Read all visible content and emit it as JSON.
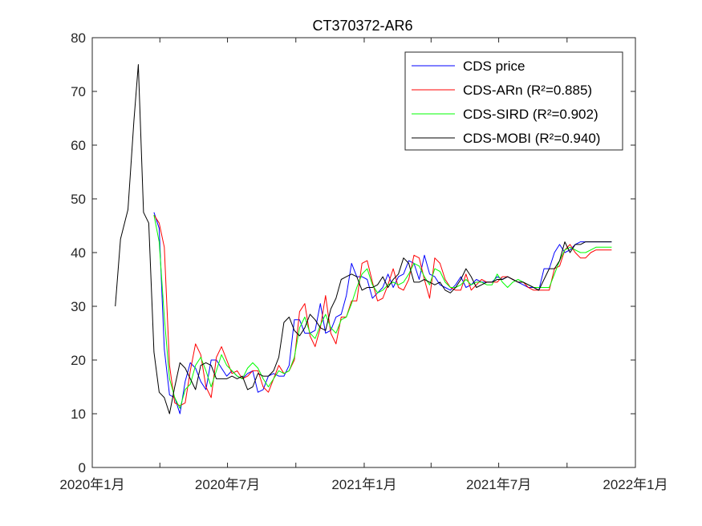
{
  "chart_data": {
    "type": "line",
    "title": "CT370372-AR6",
    "xlabel": "",
    "ylabel": "",
    "ylim": [
      0,
      80
    ],
    "xlim": [
      "2020-01-01",
      "2022-01-01"
    ],
    "yticks": [
      "0",
      "10",
      "20",
      "30",
      "40",
      "50",
      "60",
      "70",
      "80"
    ],
    "xticks": [
      {
        "date": "2020-01-01",
        "label": "2020年1月"
      },
      {
        "date": "2020-04-01",
        "label": ""
      },
      {
        "date": "2020-07-01",
        "label": "2020年7月"
      },
      {
        "date": "2020-10-01",
        "label": ""
      },
      {
        "date": "2021-01-01",
        "label": "2021年1月"
      },
      {
        "date": "2021-04-01",
        "label": ""
      },
      {
        "date": "2021-07-01",
        "label": "2021年7月"
      },
      {
        "date": "2021-10-01",
        "label": ""
      },
      {
        "date": "2022-01-01",
        "label": "2022年1月"
      }
    ],
    "grid": false,
    "legend_position": "top-right",
    "series": [
      {
        "name": "CDS price",
        "legend_label": "CDS price",
        "color": "#0000ff",
        "x": [
          "2020-03-24",
          "2020-03-31",
          "2020-04-07",
          "2020-04-14",
          "2020-04-21",
          "2020-04-28",
          "2020-05-05",
          "2020-05-12",
          "2020-05-19",
          "2020-05-26",
          "2020-06-02",
          "2020-06-09",
          "2020-06-16",
          "2020-06-23",
          "2020-06-30",
          "2020-07-07",
          "2020-07-14",
          "2020-07-21",
          "2020-07-28",
          "2020-08-04",
          "2020-08-11",
          "2020-08-18",
          "2020-08-25",
          "2020-09-01",
          "2020-09-08",
          "2020-09-15",
          "2020-09-22",
          "2020-09-29",
          "2020-10-06",
          "2020-10-13",
          "2020-10-20",
          "2020-10-27",
          "2020-11-03",
          "2020-11-10",
          "2020-11-17",
          "2020-11-24",
          "2020-12-01",
          "2020-12-08",
          "2020-12-15",
          "2020-12-22",
          "2020-12-29",
          "2021-01-05",
          "2021-01-12",
          "2021-01-19",
          "2021-01-26",
          "2021-02-02",
          "2021-02-09",
          "2021-02-16",
          "2021-02-23",
          "2021-03-02",
          "2021-03-09",
          "2021-03-16",
          "2021-03-23",
          "2021-03-30",
          "2021-04-06",
          "2021-04-13",
          "2021-04-20",
          "2021-04-27",
          "2021-05-04",
          "2021-05-11",
          "2021-05-18",
          "2021-05-25",
          "2021-06-01",
          "2021-06-08",
          "2021-06-15",
          "2021-06-22",
          "2021-06-29",
          "2021-07-06",
          "2021-07-13",
          "2021-07-20",
          "2021-07-27",
          "2021-08-03",
          "2021-08-10",
          "2021-08-17",
          "2021-08-24",
          "2021-08-31",
          "2021-09-07",
          "2021-09-14",
          "2021-09-21",
          "2021-09-28",
          "2021-10-05",
          "2021-10-12",
          "2021-10-19",
          "2021-10-26",
          "2021-11-02",
          "2021-11-09",
          "2021-11-16",
          "2021-11-23",
          "2021-11-30"
        ],
        "values": [
          47.5,
          44.5,
          22.0,
          13.5,
          13.0,
          10.0,
          16.0,
          19.5,
          18.5,
          16.0,
          14.5,
          20.0,
          20.0,
          18.5,
          17.0,
          18.0,
          17.0,
          16.5,
          17.5,
          18.0,
          14.0,
          14.5,
          17.0,
          17.5,
          17.0,
          17.0,
          19.0,
          27.5,
          27.5,
          25.0,
          25.0,
          25.5,
          30.5,
          25.0,
          25.5,
          28.0,
          28.5,
          32.0,
          38.0,
          35.5,
          35.5,
          35.0,
          31.5,
          32.5,
          33.5,
          36.0,
          33.5,
          35.5,
          36.0,
          38.5,
          38.0,
          35.0,
          39.5,
          36.0,
          35.5,
          34.0,
          33.5,
          33.0,
          34.0,
          35.5,
          33.5,
          34.0,
          35.0,
          34.5,
          34.5,
          34.5,
          35.5,
          35.0,
          35.5,
          35.0,
          34.5,
          34.0,
          33.5,
          33.5,
          33.0,
          37.0,
          37.0,
          40.0,
          41.5,
          40.0,
          40.5,
          41.5,
          42.0,
          42.0,
          42.0,
          42.0,
          42.0,
          42.0,
          42.0
        ]
      },
      {
        "name": "CDS-ARn",
        "legend_label": "CDS-ARn   (R²=0.885)",
        "color": "#ff0000",
        "x": [
          "2020-03-24",
          "2020-03-31",
          "2020-04-07",
          "2020-04-14",
          "2020-04-21",
          "2020-04-28",
          "2020-05-05",
          "2020-05-12",
          "2020-05-19",
          "2020-05-26",
          "2020-06-02",
          "2020-06-09",
          "2020-06-16",
          "2020-06-23",
          "2020-06-30",
          "2020-07-07",
          "2020-07-14",
          "2020-07-21",
          "2020-07-28",
          "2020-08-04",
          "2020-08-11",
          "2020-08-18",
          "2020-08-25",
          "2020-09-01",
          "2020-09-08",
          "2020-09-15",
          "2020-09-22",
          "2020-09-29",
          "2020-10-06",
          "2020-10-13",
          "2020-10-20",
          "2020-10-27",
          "2020-11-03",
          "2020-11-10",
          "2020-11-17",
          "2020-11-24",
          "2020-12-01",
          "2020-12-08",
          "2020-12-15",
          "2020-12-22",
          "2020-12-29",
          "2021-01-05",
          "2021-01-12",
          "2021-01-19",
          "2021-01-26",
          "2021-02-02",
          "2021-02-09",
          "2021-02-16",
          "2021-02-23",
          "2021-03-02",
          "2021-03-09",
          "2021-03-16",
          "2021-03-23",
          "2021-03-30",
          "2021-04-06",
          "2021-04-13",
          "2021-04-20",
          "2021-04-27",
          "2021-05-04",
          "2021-05-11",
          "2021-05-18",
          "2021-05-25",
          "2021-06-01",
          "2021-06-08",
          "2021-06-15",
          "2021-06-22",
          "2021-06-29",
          "2021-07-06",
          "2021-07-13",
          "2021-07-20",
          "2021-07-27",
          "2021-08-03",
          "2021-08-10",
          "2021-08-17",
          "2021-08-24",
          "2021-08-31",
          "2021-09-07",
          "2021-09-14",
          "2021-09-21",
          "2021-09-28",
          "2021-10-05",
          "2021-10-12",
          "2021-10-19",
          "2021-10-26",
          "2021-11-02",
          "2021-11-09",
          "2021-11-16",
          "2021-11-23",
          "2021-11-30"
        ],
        "values": [
          47.0,
          45.5,
          41.0,
          19.0,
          12.0,
          11.5,
          12.0,
          18.0,
          23.0,
          21.0,
          15.0,
          13.0,
          20.5,
          22.5,
          20.0,
          17.5,
          18.0,
          16.5,
          17.0,
          18.0,
          18.0,
          15.0,
          14.0,
          16.5,
          19.0,
          17.5,
          18.0,
          20.0,
          29.0,
          30.5,
          24.5,
          22.5,
          26.0,
          32.0,
          25.0,
          23.0,
          28.0,
          28.0,
          31.0,
          31.0,
          38.0,
          38.5,
          34.5,
          31.0,
          31.5,
          34.0,
          37.0,
          33.5,
          33.0,
          35.0,
          39.5,
          39.0,
          35.0,
          31.5,
          39.0,
          38.0,
          35.0,
          33.5,
          33.0,
          33.0,
          36.0,
          33.0,
          34.0,
          35.0,
          34.5,
          34.5,
          34.5,
          35.5,
          35.5,
          35.0,
          34.5,
          34.5,
          33.5,
          33.0,
          33.0,
          33.0,
          33.0,
          37.0,
          37.5,
          40.5,
          41.5,
          40.0,
          39.0,
          39.0,
          40.0,
          40.5,
          40.5,
          40.5,
          40.5
        ]
      },
      {
        "name": "CDS-SIRD",
        "legend_label": "CDS-SIRD (R²=0.902)",
        "color": "#00ff00",
        "x": [
          "2020-03-24",
          "2020-03-31",
          "2020-04-07",
          "2020-04-14",
          "2020-04-21",
          "2020-04-28",
          "2020-05-05",
          "2020-05-12",
          "2020-05-19",
          "2020-05-26",
          "2020-06-02",
          "2020-06-09",
          "2020-06-16",
          "2020-06-23",
          "2020-06-30",
          "2020-07-07",
          "2020-07-14",
          "2020-07-21",
          "2020-07-28",
          "2020-08-04",
          "2020-08-11",
          "2020-08-18",
          "2020-08-25",
          "2020-09-01",
          "2020-09-08",
          "2020-09-15",
          "2020-09-22",
          "2020-09-29",
          "2020-10-06",
          "2020-10-13",
          "2020-10-20",
          "2020-10-27",
          "2020-11-03",
          "2020-11-10",
          "2020-11-17",
          "2020-11-24",
          "2020-12-01",
          "2020-12-08",
          "2020-12-15",
          "2020-12-22",
          "2020-12-29",
          "2021-01-05",
          "2021-01-12",
          "2021-01-19",
          "2021-01-26",
          "2021-02-02",
          "2021-02-09",
          "2021-02-16",
          "2021-02-23",
          "2021-03-02",
          "2021-03-09",
          "2021-03-16",
          "2021-03-23",
          "2021-03-30",
          "2021-04-06",
          "2021-04-13",
          "2021-04-20",
          "2021-04-27",
          "2021-05-04",
          "2021-05-11",
          "2021-05-18",
          "2021-05-25",
          "2021-06-01",
          "2021-06-08",
          "2021-06-15",
          "2021-06-22",
          "2021-06-29",
          "2021-07-06",
          "2021-07-13",
          "2021-07-20",
          "2021-07-27",
          "2021-08-03",
          "2021-08-10",
          "2021-08-17",
          "2021-08-24",
          "2021-08-31",
          "2021-09-07",
          "2021-09-14",
          "2021-09-21",
          "2021-09-28",
          "2021-10-05",
          "2021-10-12",
          "2021-10-19",
          "2021-10-26",
          "2021-11-02",
          "2021-11-09",
          "2021-11-16",
          "2021-11-23",
          "2021-11-30"
        ],
        "values": [
          47.0,
          42.0,
          28.0,
          16.5,
          13.0,
          11.0,
          14.5,
          15.5,
          19.0,
          20.5,
          18.0,
          15.0,
          18.0,
          21.0,
          19.0,
          18.0,
          17.0,
          16.5,
          18.5,
          19.5,
          18.5,
          16.5,
          15.0,
          16.5,
          18.0,
          17.5,
          18.0,
          20.5,
          26.0,
          28.0,
          25.0,
          24.0,
          26.5,
          28.5,
          26.0,
          25.0,
          27.5,
          28.0,
          30.5,
          33.5,
          36.0,
          37.0,
          34.0,
          32.5,
          33.0,
          34.0,
          34.5,
          34.0,
          34.5,
          36.0,
          38.0,
          37.5,
          35.5,
          34.0,
          37.0,
          36.5,
          34.5,
          33.5,
          33.5,
          34.0,
          35.0,
          34.0,
          34.5,
          34.5,
          34.0,
          34.0,
          36.0,
          34.5,
          33.5,
          34.5,
          35.0,
          34.5,
          34.0,
          33.5,
          33.5,
          33.5,
          33.5,
          36.0,
          38.5,
          40.5,
          41.0,
          40.5,
          40.0,
          40.0,
          40.5,
          41.0,
          41.0,
          41.0,
          41.0
        ]
      },
      {
        "name": "CDS-MOBI",
        "legend_label": "CDS-MOBI (R²=0.940)",
        "color": "#000000",
        "x": [
          "2020-02-01",
          "2020-02-08",
          "2020-02-18",
          "2020-02-26",
          "2020-03-03",
          "2020-03-10",
          "2020-03-17",
          "2020-03-24",
          "2020-03-31",
          "2020-04-07",
          "2020-04-14",
          "2020-04-21",
          "2020-04-28",
          "2020-05-05",
          "2020-05-12",
          "2020-05-19",
          "2020-05-26",
          "2020-06-02",
          "2020-06-09",
          "2020-06-16",
          "2020-06-23",
          "2020-06-30",
          "2020-07-07",
          "2020-07-14",
          "2020-07-21",
          "2020-07-28",
          "2020-08-04",
          "2020-08-11",
          "2020-08-18",
          "2020-08-25",
          "2020-09-01",
          "2020-09-08",
          "2020-09-15",
          "2020-09-22",
          "2020-09-29",
          "2020-10-06",
          "2020-10-13",
          "2020-10-20",
          "2020-10-27",
          "2020-11-03",
          "2020-11-10",
          "2020-11-17",
          "2020-11-24",
          "2020-12-01",
          "2020-12-08",
          "2020-12-15",
          "2020-12-22",
          "2020-12-29",
          "2021-01-05",
          "2021-01-12",
          "2021-01-19",
          "2021-01-26",
          "2021-02-02",
          "2021-02-09",
          "2021-02-16",
          "2021-02-23",
          "2021-03-02",
          "2021-03-09",
          "2021-03-16",
          "2021-03-23",
          "2021-03-30",
          "2021-04-06",
          "2021-04-13",
          "2021-04-20",
          "2021-04-27",
          "2021-05-04",
          "2021-05-11",
          "2021-05-18",
          "2021-05-25",
          "2021-06-01",
          "2021-06-08",
          "2021-06-15",
          "2021-06-22",
          "2021-06-29",
          "2021-07-06",
          "2021-07-13",
          "2021-07-20",
          "2021-07-27",
          "2021-08-03",
          "2021-08-10",
          "2021-08-17",
          "2021-08-24",
          "2021-08-31",
          "2021-09-07",
          "2021-09-14",
          "2021-09-21",
          "2021-09-28",
          "2021-10-05",
          "2021-10-12",
          "2021-10-19",
          "2021-10-26",
          "2021-11-02",
          "2021-11-09",
          "2021-11-16",
          "2021-11-23",
          "2021-11-30"
        ],
        "values": [
          30.0,
          42.5,
          48.0,
          64.5,
          75.0,
          47.5,
          45.5,
          21.5,
          14.0,
          13.0,
          10.0,
          15.0,
          19.5,
          18.5,
          16.5,
          14.5,
          19.0,
          19.5,
          19.0,
          16.5,
          16.5,
          16.5,
          17.0,
          16.5,
          17.0,
          14.5,
          15.0,
          17.5,
          17.0,
          17.0,
          18.0,
          20.5,
          27.0,
          28.0,
          25.5,
          24.5,
          26.0,
          28.5,
          27.5,
          26.0,
          25.5,
          29.5,
          31.5,
          35.0,
          35.5,
          36.0,
          35.5,
          33.0,
          33.5,
          33.5,
          34.0,
          35.5,
          33.5,
          35.0,
          36.0,
          39.0,
          38.0,
          34.5,
          34.5,
          35.0,
          34.5,
          34.0,
          34.5,
          33.0,
          32.5,
          33.5,
          35.0,
          37.0,
          35.5,
          33.5,
          34.0,
          34.5,
          34.5,
          35.0,
          35.0,
          35.5,
          35.0,
          34.5,
          34.5,
          34.0,
          33.5,
          33.0,
          35.0,
          37.0,
          37.0,
          38.5,
          42.0,
          40.0,
          41.5,
          41.5,
          42.0,
          42.0,
          42.0,
          42.0,
          42.0,
          42.0
        ]
      }
    ]
  }
}
